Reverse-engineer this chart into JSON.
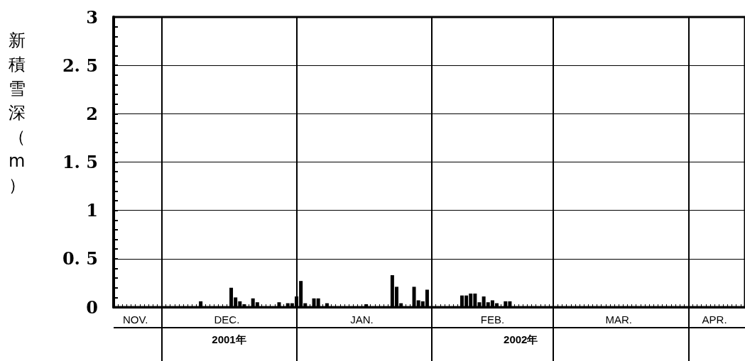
{
  "chart_data": {
    "type": "bar",
    "ylabel": "新積雪深（m）",
    "x": [
      "2001-12-10",
      "2001-12-17",
      "2001-12-18",
      "2001-12-19",
      "2001-12-20",
      "2001-12-22",
      "2001-12-23",
      "2001-12-28",
      "2001-12-30",
      "2001-12-31",
      "2002-01-01",
      "2002-01-02",
      "2002-01-03",
      "2002-01-05",
      "2002-01-06",
      "2002-01-08",
      "2002-01-17",
      "2002-01-23",
      "2002-01-24",
      "2002-01-25",
      "2002-01-28",
      "2002-01-29",
      "2002-01-30",
      "2002-01-31",
      "2002-02-08",
      "2002-02-09",
      "2002-02-10",
      "2002-02-11",
      "2002-02-12",
      "2002-02-13",
      "2002-02-14",
      "2002-02-15",
      "2002-02-16",
      "2002-02-18",
      "2002-02-19"
    ],
    "values": [
      0.06,
      0.2,
      0.1,
      0.06,
      0.03,
      0.09,
      0.05,
      0.05,
      0.04,
      0.04,
      0.11,
      0.27,
      0.04,
      0.09,
      0.09,
      0.04,
      0.03,
      0.33,
      0.21,
      0.04,
      0.21,
      0.07,
      0.06,
      0.18,
      0.12,
      0.12,
      0.14,
      0.14,
      0.05,
      0.11,
      0.05,
      0.07,
      0.04,
      0.06,
      0.06
    ],
    "color": "#000000",
    "xlim": [
      "2001-11-20",
      "2002-04-14"
    ],
    "xticks": [
      {
        "value": "2001-12-01",
        "label": null
      },
      {
        "value": "2002-01-01",
        "label": null
      },
      {
        "value": "2002-02-01",
        "label": null
      },
      {
        "value": "2002-03-01",
        "label": null
      },
      {
        "value": "2002-04-01",
        "label": null
      },
      {
        "value": "2001-11-25",
        "label": "NOV."
      },
      {
        "value": "2001-12-16",
        "label": "DEC."
      },
      {
        "value": "2002-01-16",
        "label": "JAN."
      },
      {
        "value": "2002-02-15",
        "label": "FEB."
      },
      {
        "value": "2002-03-16",
        "label": "MAR."
      },
      {
        "value": "2002-04-07",
        "label": "APR."
      }
    ],
    "ylim": [
      0,
      3
    ],
    "yticks": [
      0,
      {
        "value": 0.5,
        "label": "0. 5"
      },
      1,
      {
        "value": 1.5,
        "label": "1. 5"
      },
      2,
      {
        "value": 2.5,
        "label": "2. 5"
      },
      3
    ],
    "annotations": [
      "2001年",
      "2002年"
    ],
    "grid": true
  }
}
